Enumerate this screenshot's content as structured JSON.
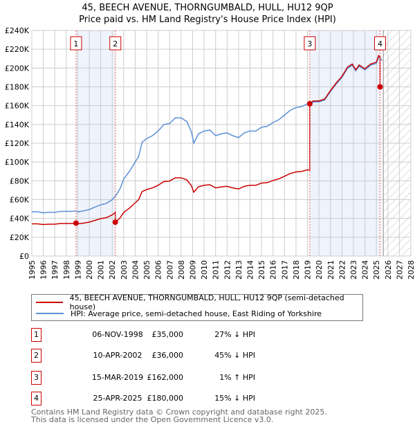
{
  "chart_data": {
    "type": "line",
    "title": "45, BEECH AVENUE, THORNGUMBALD, HULL, HU12 9QP",
    "subtitle": "Price paid vs. HM Land Registry's House Price Index (HPI)",
    "xlim": [
      1995,
      2028
    ],
    "ylim": [
      0,
      240000
    ],
    "x_ticks": [
      "1995",
      "1996",
      "1997",
      "1998",
      "1999",
      "2000",
      "2001",
      "2002",
      "2003",
      "2004",
      "2005",
      "2006",
      "2007",
      "2008",
      "2009",
      "2010",
      "2011",
      "2012",
      "2013",
      "2014",
      "2015",
      "2016",
      "2017",
      "2018",
      "2019",
      "2020",
      "2021",
      "2022",
      "2023",
      "2024",
      "2025",
      "2026",
      "2027",
      "2028"
    ],
    "y_ticks": [
      {
        "v": 0,
        "label": "£0"
      },
      {
        "v": 20000,
        "label": "£20K"
      },
      {
        "v": 40000,
        "label": "£40K"
      },
      {
        "v": 60000,
        "label": "£60K"
      },
      {
        "v": 80000,
        "label": "£80K"
      },
      {
        "v": 100000,
        "label": "£100K"
      },
      {
        "v": 120000,
        "label": "£120K"
      },
      {
        "v": 140000,
        "label": "£140K"
      },
      {
        "v": 160000,
        "label": "£160K"
      },
      {
        "v": 180000,
        "label": "£180K"
      },
      {
        "v": 200000,
        "label": "£200K"
      },
      {
        "v": 220000,
        "label": "£220K"
      },
      {
        "v": 240000,
        "label": "£240K"
      }
    ],
    "grid": true,
    "forecast_start": 2025.6,
    "colors": {
      "property": "#cc0000",
      "hpi": "#5b8fd6",
      "band": "#eef3fc"
    },
    "hpi_series": {
      "name": "HPI: Average price, semi-detached house, East Riding of Yorkshire",
      "x": [
        1995,
        1995.5,
        1996,
        1996.5,
        1997,
        1997.5,
        1998,
        1998.5,
        1998.85,
        1999,
        1999.5,
        2000,
        2000.5,
        2001,
        2001.5,
        2002,
        2002.3,
        2002.7,
        2003,
        2003.5,
        2004,
        2004.3,
        2004.6,
        2005,
        2005.5,
        2006,
        2006.5,
        2007,
        2007.5,
        2008,
        2008.5,
        2008.9,
        2009.1,
        2009.5,
        2010,
        2010.5,
        2011,
        2011.5,
        2012,
        2012.5,
        2013,
        2013.5,
        2014,
        2014.5,
        2015,
        2015.5,
        2016,
        2016.5,
        2017,
        2017.5,
        2018,
        2018.5,
        2019,
        2019.2,
        2019.5,
        2020,
        2020.5,
        2021,
        2021.5,
        2022,
        2022.5,
        2022.9,
        2023.2,
        2023.5,
        2024,
        2024.5,
        2025,
        2025.2,
        2025.5
      ],
      "y": [
        47000,
        47000,
        46000,
        46500,
        46500,
        47500,
        47500,
        47500,
        48000,
        47000,
        48000,
        49500,
        52000,
        54500,
        56000,
        60000,
        64000,
        72000,
        82000,
        90000,
        100000,
        106000,
        121000,
        125000,
        128000,
        133000,
        140000,
        141000,
        147000,
        147000,
        143000,
        132000,
        120000,
        130000,
        133000,
        134000,
        128000,
        130000,
        131000,
        128000,
        126000,
        131000,
        133000,
        133000,
        137000,
        138000,
        142000,
        145000,
        150000,
        155000,
        158000,
        159000,
        162000,
        161000,
        164000,
        164000,
        166000,
        175000,
        183000,
        190000,
        200000,
        203000,
        197000,
        202000,
        198000,
        203000,
        205000,
        212000,
        208000
      ]
    },
    "property_series": {
      "name": "45, BEECH AVENUE, THORNGUMBALD, HULL, HU12 9QP (semi-detached house)"
    },
    "sales": [
      {
        "id": "1",
        "date": "06-NOV-1998",
        "x": 1998.85,
        "price": 35000,
        "price_label": "£35,000",
        "hpi": "27% ↓ HPI"
      },
      {
        "id": "2",
        "date": "10-APR-2002",
        "x": 2002.27,
        "price": 36000,
        "price_label": "£36,000",
        "hpi": "45% ↓ HPI"
      },
      {
        "id": "3",
        "date": "15-MAR-2019",
        "x": 2019.2,
        "price": 162000,
        "price_label": "£162,000",
        "hpi": "1% ↑ HPI"
      },
      {
        "id": "4",
        "date": "25-APR-2025",
        "x": 2025.32,
        "price": 180000,
        "price_label": "£180,000",
        "hpi": "15% ↓ HPI"
      }
    ]
  },
  "footer": {
    "line1": "Contains HM Land Registry data © Crown copyright and database right 2025.",
    "line2": "This data is licensed under the Open Government Licence v3.0."
  }
}
